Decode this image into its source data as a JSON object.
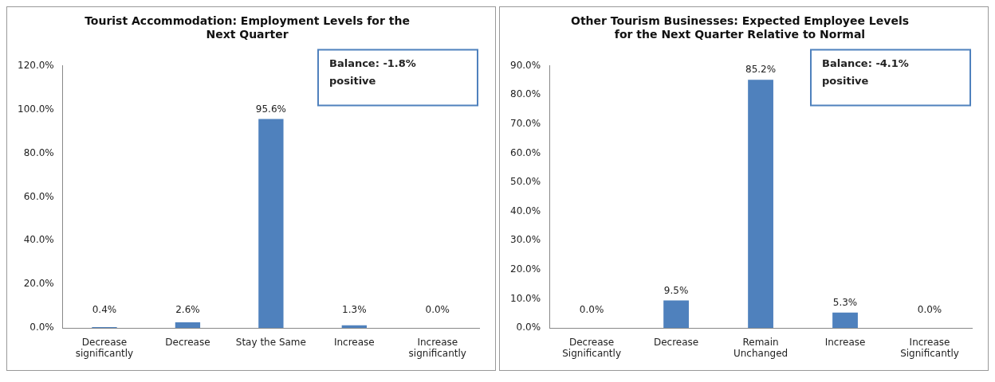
{
  "chart_data": [
    {
      "type": "bar",
      "title": "Tourist Accommodation: Employment Levels for the Next Quarter",
      "categories": [
        "Decrease significantly",
        "Decrease",
        "Stay the Same",
        "Increase",
        "Increase significantly"
      ],
      "values": [
        0.4,
        2.6,
        95.6,
        1.3,
        0.0
      ],
      "value_labels": [
        "0.4%",
        "2.6%",
        "95.6%",
        "1.3%",
        "0.0%"
      ],
      "color": "#4f81bd",
      "ylim": [
        0,
        120
      ],
      "yticks": [
        {
          "value": 0,
          "label": "0.0%"
        },
        {
          "value": 20,
          "label": "20.0%"
        },
        {
          "value": 40,
          "label": "40.0%"
        },
        {
          "value": 60,
          "label": "60.0%"
        },
        {
          "value": 80,
          "label": "80.0%"
        },
        {
          "value": 100,
          "label": "100.0%"
        },
        {
          "value": 120,
          "label": "120.0%"
        }
      ],
      "grid": false,
      "legend": false,
      "annotations": [
        "Balance: -1.8% positive"
      ]
    },
    {
      "type": "bar",
      "title": "Other Tourism Businesses: Expected Employee Levels for the Next Quarter Relative to Normal",
      "categories": [
        "Decrease Significantly",
        "Decrease",
        "Remain Unchanged",
        "Increase",
        "Increase Significantly"
      ],
      "values": [
        0.0,
        9.5,
        85.2,
        5.3,
        0.0
      ],
      "value_labels": [
        "0.0%",
        "9.5%",
        "85.2%",
        "5.3%",
        "0.0%"
      ],
      "color": "#4f81bd",
      "ylim": [
        0,
        90
      ],
      "yticks": [
        {
          "value": 0,
          "label": "0.0%"
        },
        {
          "value": 10,
          "label": "10.0%"
        },
        {
          "value": 20,
          "label": "20.0%"
        },
        {
          "value": 30,
          "label": "30.0%"
        },
        {
          "value": 40,
          "label": "40.0%"
        },
        {
          "value": 50,
          "label": "50.0%"
        },
        {
          "value": 60,
          "label": "60.0%"
        },
        {
          "value": 70,
          "label": "70.0%"
        },
        {
          "value": 80,
          "label": "80.0%"
        },
        {
          "value": 90,
          "label": "90.0%"
        }
      ],
      "grid": false,
      "legend": false,
      "annotations": [
        "Balance: -4.1% positive"
      ]
    }
  ]
}
